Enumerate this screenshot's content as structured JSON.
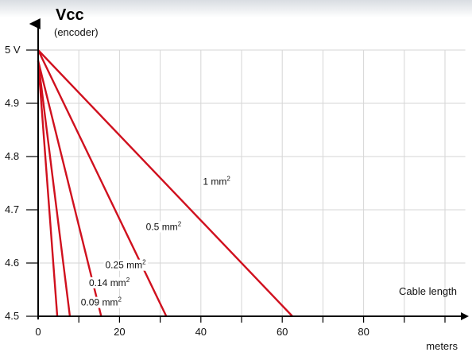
{
  "chart_data": {
    "type": "line",
    "ylabel": "Vcc",
    "ylabel_sub": "(encoder)",
    "xlabel": "Cable length",
    "xunit": "meters",
    "xlim": [
      0,
      105
    ],
    "ylim": [
      4.5,
      5.0
    ],
    "x_ticks": [
      0,
      20,
      40,
      60,
      80
    ],
    "x_minor_ticks": [
      10,
      30,
      50,
      70,
      90,
      100
    ],
    "y_ticks": [
      {
        "value": 4.5,
        "label": "4.5"
      },
      {
        "value": 4.6,
        "label": "4.6"
      },
      {
        "value": 4.7,
        "label": "4.7"
      },
      {
        "value": 4.8,
        "label": "4.8"
      },
      {
        "value": 4.9,
        "label": "4.9"
      },
      {
        "value": 5.0,
        "label": "5 V"
      }
    ],
    "grid": true,
    "series": [
      {
        "name": "1 mm²",
        "base": "1 mm",
        "sup": "2",
        "points": [
          [
            0,
            5.0
          ],
          [
            62.5,
            4.5
          ]
        ],
        "label_at": [
          40.5,
          4.747
        ]
      },
      {
        "name": "0.5 mm²",
        "base": "0.5 mm",
        "sup": "2",
        "points": [
          [
            0,
            5.0
          ],
          [
            31.5,
            4.5
          ]
        ],
        "label_at": [
          26.5,
          4.662
        ]
      },
      {
        "name": "0.25 mm²",
        "base": "0.25 mm",
        "sup": "2",
        "points": [
          [
            0,
            4.98
          ],
          [
            15.5,
            4.5
          ]
        ],
        "label_at": [
          16.5,
          4.59
        ]
      },
      {
        "name": "0.14 mm²",
        "base": "0.14 mm",
        "sup": "2",
        "points": [
          [
            0,
            4.98
          ],
          [
            7.8,
            4.5
          ]
        ],
        "label_at": [
          12.5,
          4.557
        ]
      },
      {
        "name": "0.09 mm²",
        "base": "0.09 mm",
        "sup": "2",
        "points": [
          [
            0,
            4.98
          ],
          [
            4.7,
            4.5
          ]
        ],
        "label_at": [
          10.5,
          4.52
        ]
      }
    ],
    "colors": {
      "series": "#d0101e",
      "grid": "#d6d6d6",
      "axis": "#000000"
    }
  }
}
